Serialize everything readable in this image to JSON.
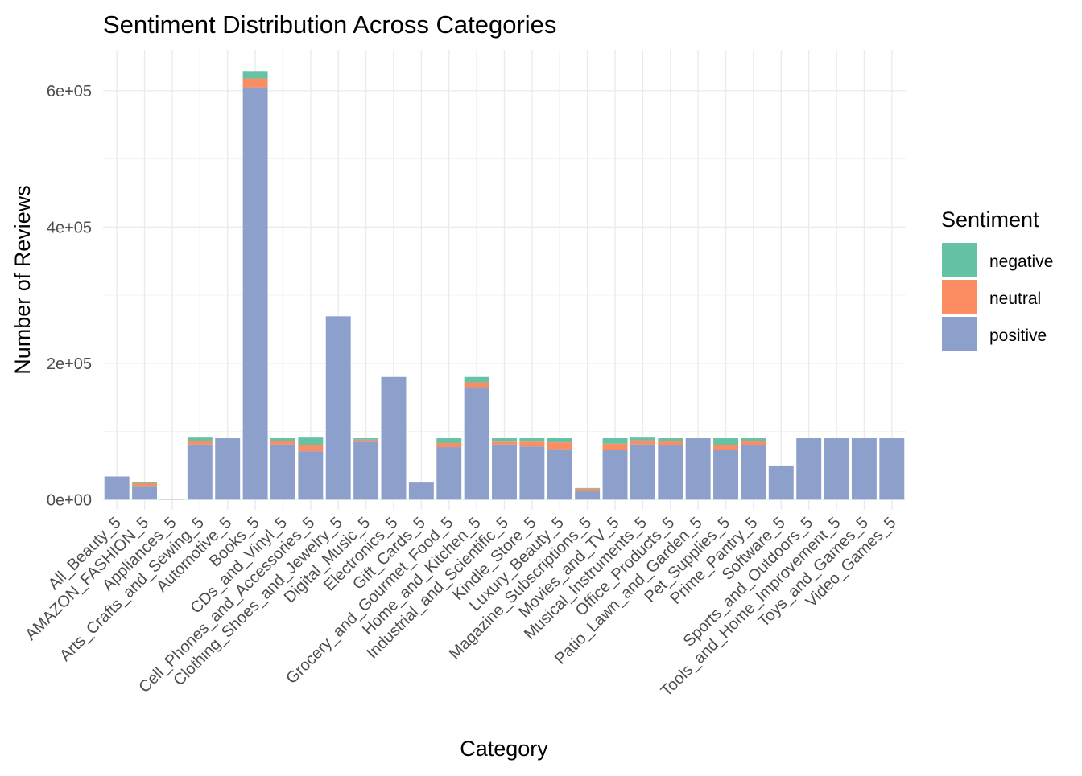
{
  "chart_data": {
    "type": "bar",
    "stacked": true,
    "title": "Sentiment Distribution Across Categories",
    "xlabel": "Category",
    "ylabel": "Number of Reviews",
    "ylim": [
      -15000,
      660000
    ],
    "y_ticks": [
      0,
      200000,
      400000,
      600000
    ],
    "y_tick_labels": [
      "0e+00",
      "2e+05",
      "4e+05",
      "6e+05"
    ],
    "grid": true,
    "legend": {
      "title": "Sentiment",
      "position": "right"
    },
    "categories": [
      "All_Beauty_5",
      "AMAZON_FASHION_5",
      "Appliances_5",
      "Arts_Crafts_and_Sewing_5",
      "Automotive_5",
      "Books_5",
      "CDs_and_Vinyl_5",
      "Cell_Phones_and_Accessories_5",
      "Clothing_Shoes_and_Jewelry_5",
      "Digital_Music_5",
      "Electronics_5",
      "Gift_Cards_5",
      "Grocery_and_Gourmet_Food_5",
      "Home_and_Kitchen_5",
      "Industrial_and_Scientific_5",
      "Kindle_Store_5",
      "Luxury_Beauty_5",
      "Magazine_Subscriptions_5",
      "Movies_and_TV_5",
      "Musical_Instruments_5",
      "Office_Products_5",
      "Patio_Lawn_and_Garden_5",
      "Pet_Supplies_5",
      "Prime_Pantry_5",
      "Software_5",
      "Sports_and_Outdoors_5",
      "Tools_and_Home_Improvement_5",
      "Toys_and_Games_5",
      "Video_Games_5"
    ],
    "series": [
      {
        "name": "positive",
        "color": "#8DA0CB",
        "values": [
          34000,
          20000,
          1500,
          81000,
          90000,
          605000,
          81000,
          71000,
          269000,
          85000,
          180000,
          25000,
          77000,
          165000,
          81000,
          78000,
          74000,
          13000,
          73000,
          81000,
          80000,
          90000,
          73000,
          80000,
          50000,
          90000,
          90000,
          90000,
          90000
        ]
      },
      {
        "name": "neutral",
        "color": "#FC8D62",
        "values": [
          0,
          4000,
          0,
          5000,
          0,
          13000,
          5000,
          9000,
          0,
          3000,
          0,
          0,
          6000,
          7000,
          4000,
          7000,
          10000,
          3000,
          9000,
          6000,
          6000,
          0,
          7000,
          6000,
          0,
          0,
          0,
          0,
          0
        ]
      },
      {
        "name": "negative",
        "color": "#66C2A5",
        "values": [
          0,
          2000,
          0,
          5000,
          0,
          11000,
          4000,
          11000,
          0,
          2000,
          0,
          0,
          7000,
          8000,
          5000,
          5000,
          6000,
          1000,
          8000,
          4000,
          4000,
          0,
          10000,
          4000,
          0,
          0,
          0,
          0,
          0
        ]
      }
    ]
  }
}
